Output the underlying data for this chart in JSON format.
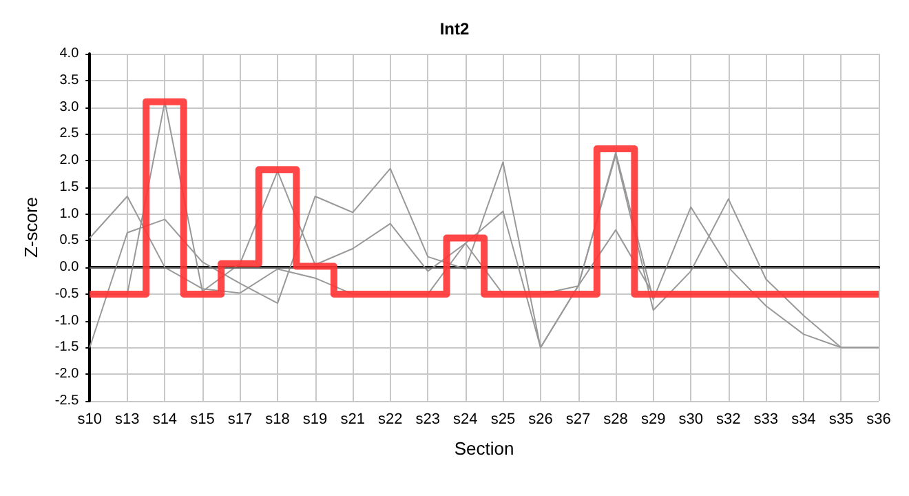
{
  "chart_data": {
    "type": "line",
    "title": "Int2",
    "xlabel": "Section",
    "ylabel": "Z-score",
    "categories": [
      "s10",
      "s13",
      "s14",
      "s15",
      "s17",
      "s18",
      "s19",
      "s21",
      "s22",
      "s23",
      "s24",
      "s25",
      "s26",
      "s27",
      "s28",
      "s29",
      "s30",
      "s32",
      "s33",
      "s34",
      "s35",
      "s36"
    ],
    "series": [
      {
        "color": "#999999",
        "values": [
          0.55,
          1.33,
          0.0,
          -0.4,
          -0.48,
          -0.03,
          -0.2,
          -0.5,
          -0.5,
          -0.5,
          0.45,
          -0.5,
          -0.5,
          -0.35,
          0.7,
          -0.5,
          -0.5,
          -0.5,
          -0.5,
          -0.5,
          -0.5,
          -0.5
        ]
      },
      {
        "color": "#999999",
        "values": [
          -1.5,
          0.65,
          0.9,
          0.1,
          -0.3,
          -0.67,
          1.33,
          1.03,
          1.85,
          0.2,
          -0.03,
          1.97,
          -1.5,
          -0.35,
          2.15,
          -0.6,
          1.13,
          0.0,
          -0.72,
          -1.25,
          -1.5,
          -1.5
        ]
      },
      {
        "color": "#999999",
        "values": [
          -0.5,
          -0.5,
          3.1,
          -0.45,
          0.07,
          1.8,
          0.05,
          0.35,
          0.82,
          -0.07,
          0.45,
          1.05,
          -1.5,
          -0.35,
          2.1,
          -0.8,
          -0.07,
          1.28,
          -0.22,
          -0.9,
          -1.5,
          -1.5
        ]
      },
      {
        "type": "step",
        "color": "#ff3333",
        "values": [
          -0.5,
          -0.5,
          3.1,
          -0.5,
          0.07,
          1.83,
          0.02,
          -0.5,
          -0.5,
          -0.5,
          0.55,
          -0.5,
          -0.5,
          -0.5,
          2.22,
          -0.5,
          -0.5,
          -0.5,
          -0.5,
          -0.5,
          -0.5,
          -0.5
        ]
      }
    ],
    "ylim": [
      -2.5,
      4
    ],
    "yticks": [
      {
        "value": -2.5,
        "label": "-2.5"
      },
      {
        "value": -2,
        "label": "-2.0"
      },
      {
        "value": -1.5,
        "label": "-1.5"
      },
      {
        "value": -1,
        "label": "-1.0"
      },
      {
        "value": -0.5,
        "label": "-0.5"
      },
      {
        "value": 0,
        "label": "0.0"
      },
      {
        "value": 0.5,
        "label": "0.5"
      },
      {
        "value": 1,
        "label": "1.0"
      },
      {
        "value": 1.5,
        "label": "1.5"
      },
      {
        "value": 2,
        "label": "2.0"
      },
      {
        "value": 2.5,
        "label": "2.5"
      },
      {
        "value": 3,
        "label": "3.0"
      },
      {
        "value": 3.5,
        "label": "3.5"
      },
      {
        "value": 4,
        "label": "4.0"
      }
    ],
    "ref_lines": [
      {
        "axis": "y",
        "value": 0,
        "color": "#666666"
      }
    ],
    "grid": true,
    "marker": "none",
    "line_style": "solid"
  }
}
